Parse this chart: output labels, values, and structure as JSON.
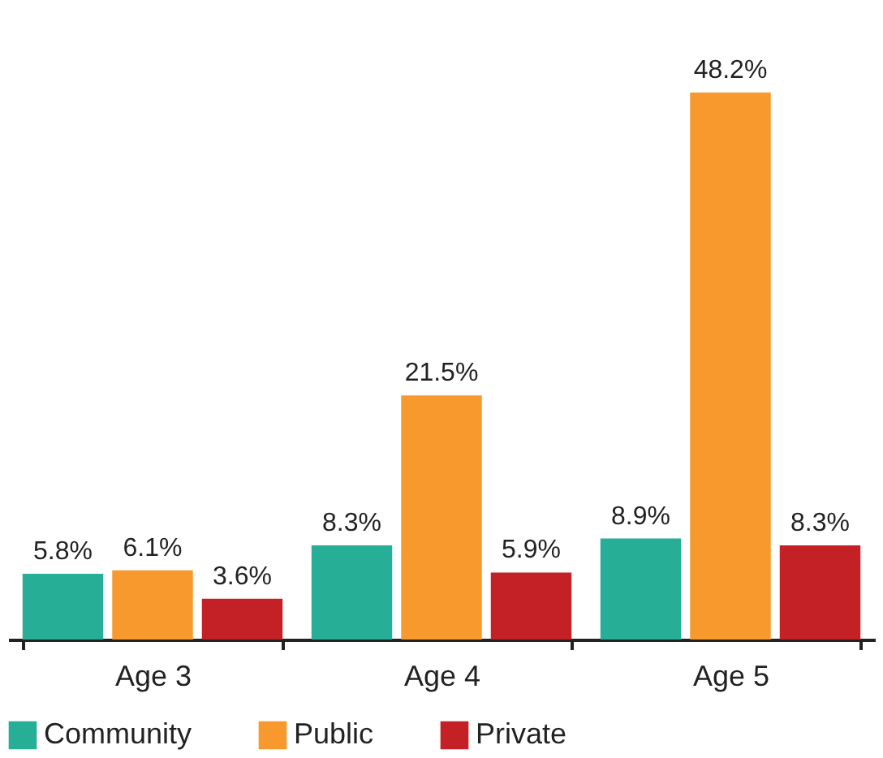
{
  "chart_data": {
    "type": "bar",
    "categories": [
      "Age 3",
      "Age 4",
      "Age 5"
    ],
    "series": [
      {
        "name": "Community",
        "color": "#26ae96",
        "values": [
          5.8,
          8.3,
          8.9
        ],
        "value_labels": [
          "5.8%",
          "8.3%",
          "8.9%"
        ]
      },
      {
        "name": "Public",
        "color": "#f7992d",
        "values": [
          6.1,
          21.5,
          48.2
        ],
        "value_labels": [
          "6.1%",
          "21.5%",
          "48.2%"
        ]
      },
      {
        "name": "Private",
        "color": "#c42127",
        "values": [
          3.6,
          5.9,
          8.3
        ],
        "value_labels": [
          "3.6%",
          "5.9%",
          "8.3%"
        ]
      }
    ],
    "legend": "bottom",
    "grid": false
  }
}
